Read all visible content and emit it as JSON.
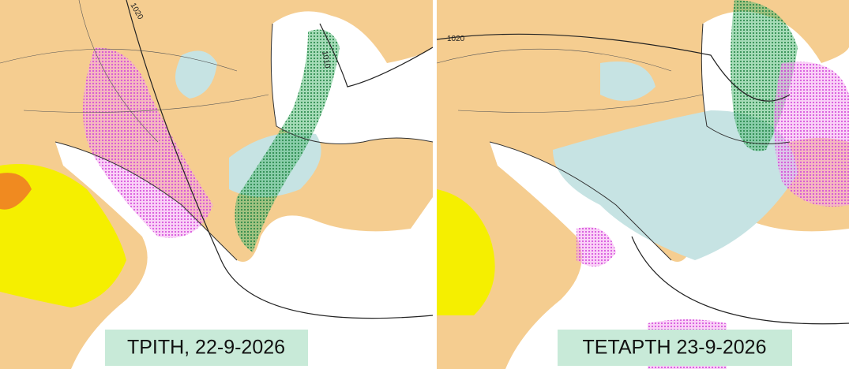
{
  "panels": [
    {
      "label": "ΤΡΙΤΗ, 22-9-2026",
      "isobar_labels": [
        "1020",
        "1010"
      ]
    },
    {
      "label": "ΤΕΤΑΡΤΗ 23-9-2026",
      "isobar_labels": [
        "1020"
      ]
    }
  ]
}
